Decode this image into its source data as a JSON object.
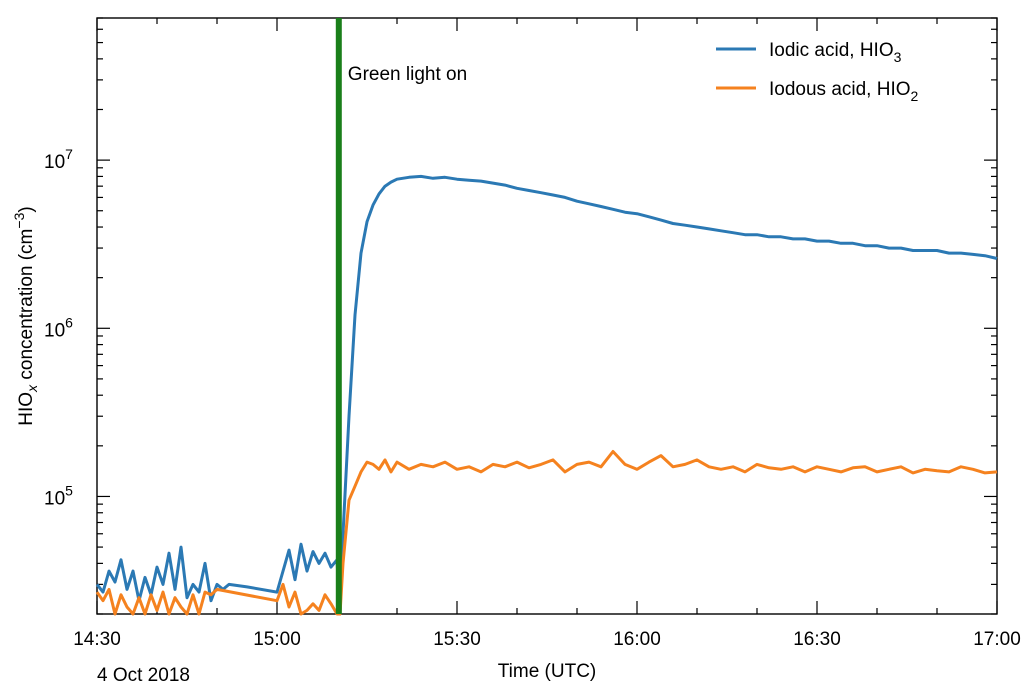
{
  "chart_data": {
    "type": "line",
    "title": "",
    "xlabel": "Time (UTC)",
    "ylabel_main": "HIO",
    "ylabel_sub": "x",
    "ylabel_rest": " concentration (cm",
    "ylabel_sup": "−3",
    "ylabel_close": ")",
    "date_label": "4 Oct 2018",
    "x_units": "minutes after 14:30",
    "xlim": [
      0,
      150
    ],
    "ylim": [
      20000,
      70000000
    ],
    "yscale": "log",
    "grid": false,
    "legend_position": "top-right",
    "x_tick_labels": [
      {
        "x": 0,
        "label": "14:30"
      },
      {
        "x": 30,
        "label": "15:00"
      },
      {
        "x": 60,
        "label": "15:30"
      },
      {
        "x": 90,
        "label": "16:00"
      },
      {
        "x": 120,
        "label": "16:30"
      },
      {
        "x": 150,
        "label": "17:00"
      }
    ],
    "y_tick_labels": [
      {
        "y": 100000,
        "base": "10",
        "exp": "5"
      },
      {
        "y": 1000000,
        "base": "10",
        "exp": "6"
      },
      {
        "y": 10000000,
        "base": "10",
        "exp": "7"
      }
    ],
    "annotation": {
      "text": "Green light on",
      "x": 40.3,
      "color": "#1a7f1a"
    },
    "series": [
      {
        "name_main": "Iodic acid, HIO",
        "name_sub": "3",
        "color": "#2b79b4",
        "x": [
          0,
          1,
          2,
          3,
          4,
          5,
          6,
          7,
          8,
          9,
          10,
          11,
          12,
          13,
          14,
          15,
          16,
          17,
          18,
          19,
          20,
          21,
          22,
          25,
          30,
          31,
          32,
          33,
          34,
          35,
          36,
          37,
          38,
          39,
          40,
          40.5,
          41,
          42,
          43,
          44,
          45,
          46,
          47,
          48,
          49,
          50,
          52,
          54,
          56,
          58,
          60,
          62,
          64,
          66,
          68,
          70,
          72,
          74,
          76,
          78,
          80,
          82,
          84,
          86,
          88,
          90,
          92,
          94,
          96,
          98,
          100,
          102,
          104,
          106,
          108,
          110,
          112,
          114,
          116,
          118,
          120,
          122,
          124,
          126,
          128,
          130,
          132,
          134,
          136,
          138,
          140,
          142,
          144,
          146,
          148,
          150
        ],
        "y": [
          30000,
          27000,
          36000,
          31000,
          42000,
          28000,
          36000,
          24000,
          33000,
          26000,
          38000,
          30000,
          46000,
          28000,
          50000,
          25000,
          30000,
          27000,
          40000,
          24000,
          30000,
          28000,
          30000,
          29000,
          27000,
          36000,
          48000,
          32000,
          52000,
          36000,
          47000,
          40000,
          46000,
          38000,
          42000,
          20000,
          60000,
          300000,
          1200000,
          2800000,
          4300000,
          5400000,
          6300000,
          7000000,
          7400000,
          7700000,
          7900000,
          8000000,
          7800000,
          7900000,
          7700000,
          7600000,
          7500000,
          7300000,
          7100000,
          6800000,
          6600000,
          6400000,
          6200000,
          6000000,
          5700000,
          5500000,
          5300000,
          5100000,
          4900000,
          4800000,
          4600000,
          4400000,
          4200000,
          4100000,
          4000000,
          3900000,
          3800000,
          3700000,
          3600000,
          3600000,
          3500000,
          3500000,
          3400000,
          3400000,
          3300000,
          3300000,
          3200000,
          3200000,
          3100000,
          3100000,
          3000000,
          3000000,
          2900000,
          2900000,
          2900000,
          2800000,
          2800000,
          2750000,
          2700000,
          2600000
        ]
      },
      {
        "name_main": "Iodous acid, HIO",
        "name_sub": "2",
        "color": "#f5821f",
        "x": [
          0,
          1,
          2,
          3,
          4,
          5,
          6,
          7,
          8,
          9,
          10,
          11,
          12,
          13,
          14,
          15,
          16,
          17,
          18,
          19,
          20,
          30,
          31,
          32,
          33,
          34,
          35,
          36,
          37,
          38,
          39,
          40,
          40.5,
          41,
          42,
          43,
          44,
          45,
          46,
          47,
          48,
          49,
          50,
          52,
          54,
          56,
          58,
          60,
          62,
          64,
          66,
          68,
          70,
          72,
          74,
          76,
          78,
          80,
          82,
          84,
          86,
          88,
          90,
          92,
          94,
          96,
          98,
          100,
          102,
          104,
          106,
          108,
          110,
          112,
          114,
          116,
          118,
          120,
          122,
          124,
          126,
          128,
          130,
          132,
          134,
          136,
          138,
          140,
          142,
          144,
          146,
          148,
          150
        ],
        "y": [
          27000,
          24000,
          28000,
          20000,
          26000,
          22000,
          20000,
          25000,
          20000,
          26000,
          21000,
          27000,
          20000,
          25000,
          22000,
          20000,
          26000,
          20000,
          27000,
          26000,
          28000,
          24000,
          30000,
          22000,
          27000,
          20000,
          21000,
          23000,
          21000,
          26000,
          23000,
          20000,
          20000,
          40000,
          95000,
          115000,
          140000,
          160000,
          155000,
          145000,
          165000,
          140000,
          160000,
          145000,
          155000,
          150000,
          160000,
          145000,
          150000,
          140000,
          155000,
          150000,
          160000,
          148000,
          155000,
          165000,
          140000,
          155000,
          160000,
          150000,
          185000,
          155000,
          145000,
          160000,
          175000,
          150000,
          155000,
          165000,
          150000,
          145000,
          150000,
          140000,
          155000,
          148000,
          145000,
          150000,
          140000,
          150000,
          145000,
          140000,
          148000,
          150000,
          140000,
          145000,
          150000,
          138000,
          145000,
          142000,
          140000,
          150000,
          145000,
          138000,
          140000
        ]
      }
    ]
  }
}
